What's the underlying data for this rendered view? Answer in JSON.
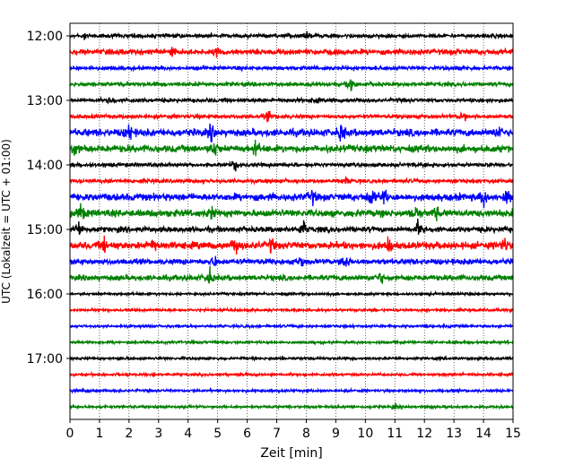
{
  "chart_data": {
    "type": "line",
    "title": "",
    "xlabel": "Zeit  [min]",
    "ylabel": "UTC (Lokalzeit = UTC + 01:00)",
    "xlim": [
      0,
      15
    ],
    "x_ticks": [
      "0",
      "1",
      "2",
      "3",
      "4",
      "5",
      "6",
      "7",
      "8",
      "9",
      "10",
      "11",
      "12",
      "13",
      "14",
      "15"
    ],
    "y_ticks": [
      "12:00",
      "13:00",
      "14:00",
      "15:00",
      "16:00",
      "17:00"
    ],
    "grid": "vertical dotted lines at every minute",
    "legend": "none",
    "trace_color_cycle": [
      "#000000",
      "#ff0000",
      "#0000ff",
      "#008000"
    ],
    "series": [
      {
        "start": "12:00",
        "color": "#000000",
        "activity": "low",
        "events": [
          {
            "min": 0.5,
            "amp": 0.3
          },
          {
            "min": 8.0,
            "amp": 0.3
          }
        ]
      },
      {
        "start": "12:15",
        "color": "#ff0000",
        "activity": "medium",
        "events": [
          {
            "min": 3.5,
            "amp": 0.5
          },
          {
            "min": 5.0,
            "amp": 0.4
          }
        ]
      },
      {
        "start": "12:30",
        "color": "#0000ff",
        "activity": "low",
        "events": []
      },
      {
        "start": "12:45",
        "color": "#008000",
        "activity": "low",
        "events": [
          {
            "min": 9.5,
            "amp": 1.0
          }
        ]
      },
      {
        "start": "13:00",
        "color": "#000000",
        "activity": "low",
        "events": [
          {
            "min": 1.4,
            "amp": 0.4
          },
          {
            "min": 8.3,
            "amp": 0.3
          }
        ]
      },
      {
        "start": "13:15",
        "color": "#ff0000",
        "activity": "low",
        "events": [
          {
            "min": 6.7,
            "amp": 0.5
          },
          {
            "min": 13.3,
            "amp": 0.6
          }
        ]
      },
      {
        "start": "13:30",
        "color": "#0000ff",
        "activity": "high",
        "events": [
          {
            "min": 2.0,
            "amp": 0.9
          },
          {
            "min": 4.8,
            "amp": 0.8
          },
          {
            "min": 9.2,
            "amp": 0.9
          },
          {
            "min": 14.5,
            "amp": 0.8
          }
        ]
      },
      {
        "start": "13:45",
        "color": "#008000",
        "activity": "high",
        "events": [
          {
            "min": 0.2,
            "amp": 0.9
          },
          {
            "min": 4.9,
            "amp": 0.9
          },
          {
            "min": 6.3,
            "amp": 0.7
          }
        ]
      },
      {
        "start": "14:00",
        "color": "#000000",
        "activity": "low",
        "events": [
          {
            "min": 5.6,
            "amp": 0.6
          }
        ]
      },
      {
        "start": "14:15",
        "color": "#ff0000",
        "activity": "low",
        "events": [
          {
            "min": 9.3,
            "amp": 0.4
          }
        ]
      },
      {
        "start": "14:30",
        "color": "#0000ff",
        "activity": "high",
        "events": [
          {
            "min": 8.2,
            "amp": 0.7
          },
          {
            "min": 10.2,
            "amp": 1.0
          },
          {
            "min": 10.6,
            "amp": 0.9
          },
          {
            "min": 14.0,
            "amp": 0.9
          },
          {
            "min": 14.8,
            "amp": 0.8
          }
        ]
      },
      {
        "start": "14:45",
        "color": "#008000",
        "activity": "high",
        "events": [
          {
            "min": 0.4,
            "amp": 0.9
          },
          {
            "min": 4.8,
            "amp": 0.7
          },
          {
            "min": 11.7,
            "amp": 0.8
          },
          {
            "min": 12.4,
            "amp": 0.6
          }
        ]
      },
      {
        "start": "15:00",
        "color": "#000000",
        "activity": "medium",
        "events": [
          {
            "min": 0.3,
            "amp": 1.0
          },
          {
            "min": 7.9,
            "amp": 1.0
          },
          {
            "min": 11.8,
            "amp": 0.9
          }
        ]
      },
      {
        "start": "15:15",
        "color": "#ff0000",
        "activity": "high",
        "events": [
          {
            "min": 1.2,
            "amp": 0.9
          },
          {
            "min": 2.8,
            "amp": 0.7
          },
          {
            "min": 5.6,
            "amp": 0.8
          },
          {
            "min": 6.8,
            "amp": 0.7
          },
          {
            "min": 10.8,
            "amp": 0.9
          },
          {
            "min": 14.7,
            "amp": 0.8
          }
        ]
      },
      {
        "start": "15:30",
        "color": "#0000ff",
        "activity": "medium",
        "events": [
          {
            "min": 9.3,
            "amp": 1.0
          },
          {
            "min": 4.9,
            "amp": 0.6
          },
          {
            "min": 7.8,
            "amp": 0.6
          }
        ]
      },
      {
        "start": "15:45",
        "color": "#008000",
        "activity": "medium",
        "events": [
          {
            "min": 4.7,
            "amp": 1.0
          },
          {
            "min": 10.5,
            "amp": 0.6
          }
        ]
      },
      {
        "start": "16:00",
        "color": "#000000",
        "activity": "quiet",
        "events": []
      },
      {
        "start": "16:15",
        "color": "#ff0000",
        "activity": "quiet",
        "events": []
      },
      {
        "start": "16:30",
        "color": "#0000ff",
        "activity": "quiet",
        "events": []
      },
      {
        "start": "16:45",
        "color": "#008000",
        "activity": "quiet",
        "events": []
      },
      {
        "start": "17:00",
        "color": "#000000",
        "activity": "quiet",
        "events": []
      },
      {
        "start": "17:15",
        "color": "#ff0000",
        "activity": "quiet",
        "events": []
      },
      {
        "start": "17:30",
        "color": "#0000ff",
        "activity": "quiet",
        "events": []
      },
      {
        "start": "17:45",
        "color": "#008000",
        "activity": "quiet",
        "events": [
          {
            "min": 11.0,
            "amp": 0.3
          }
        ]
      }
    ]
  }
}
